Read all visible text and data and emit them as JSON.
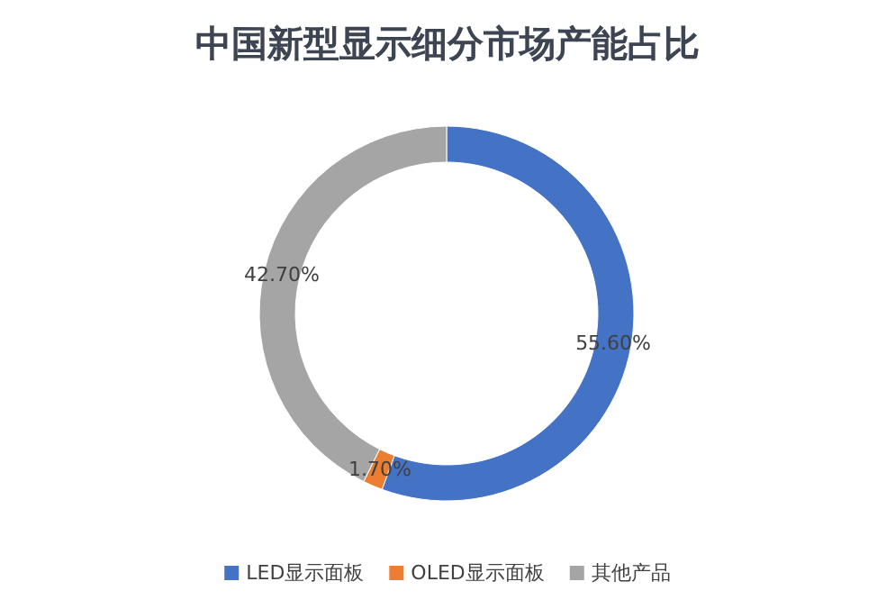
{
  "chart_data": {
    "type": "donut",
    "title": "中国新型显示细分市场产能占比",
    "categories": [
      "LED显示面板",
      "OLED显示面板",
      "其他产品"
    ],
    "values": [
      55.6,
      1.7,
      42.7
    ],
    "colors": [
      "#4472c4",
      "#ed7d31",
      "#a5a5a5"
    ],
    "value_labels": [
      "55.60%",
      "1.70%",
      "42.70%"
    ],
    "legend": "bottom"
  }
}
